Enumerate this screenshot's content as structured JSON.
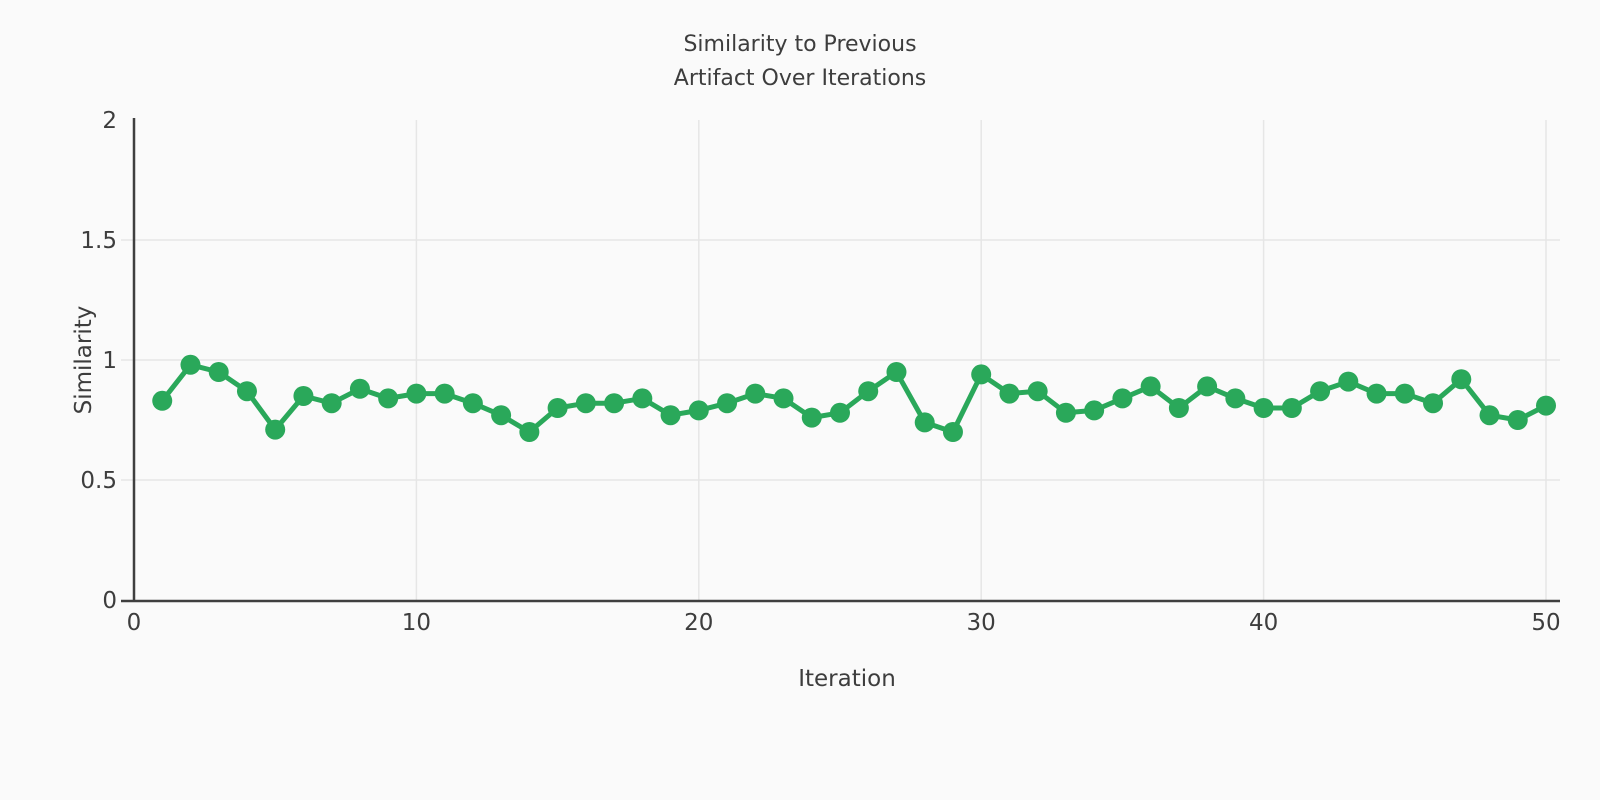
{
  "page": {
    "background_color": "#fafafa"
  },
  "chart_data": {
    "type": "line",
    "title_lines": [
      "Similarity to Previous",
      "Artifact Over Iterations"
    ],
    "xlabel": "Iteration",
    "ylabel": "Similarity",
    "x": [
      1,
      2,
      3,
      4,
      5,
      6,
      7,
      8,
      9,
      10,
      11,
      12,
      13,
      14,
      15,
      16,
      17,
      18,
      19,
      20,
      21,
      22,
      23,
      24,
      25,
      26,
      27,
      28,
      29,
      30,
      31,
      32,
      33,
      34,
      35,
      36,
      37,
      38,
      39,
      40,
      41,
      42,
      43,
      44,
      45,
      46,
      47,
      48,
      49,
      50
    ],
    "series": [
      {
        "name": "similarity",
        "values": [
          0.83,
          0.98,
          0.95,
          0.87,
          0.71,
          0.85,
          0.82,
          0.88,
          0.84,
          0.86,
          0.86,
          0.82,
          0.77,
          0.7,
          0.8,
          0.82,
          0.82,
          0.84,
          0.77,
          0.79,
          0.82,
          0.86,
          0.84,
          0.76,
          0.78,
          0.87,
          0.95,
          0.74,
          0.7,
          0.94,
          0.86,
          0.87,
          0.78,
          0.79,
          0.84,
          0.89,
          0.8,
          0.89,
          0.84,
          0.8,
          0.8,
          0.87,
          0.91,
          0.86,
          0.86,
          0.82,
          0.92,
          0.77,
          0.75,
          0.81
        ]
      }
    ],
    "xlim": [
      0,
      50.5
    ],
    "ylim": [
      0,
      2
    ],
    "xticks": [
      0,
      10,
      20,
      30,
      40,
      50
    ],
    "yticks": [
      0,
      0.5,
      1,
      1.5,
      2
    ],
    "grid": true,
    "legend": false,
    "line_color": "#2aa85a",
    "marker": "circle",
    "marker_radius": 10,
    "line_width": 5,
    "grid_color": "#e6e6e6",
    "axis_color": "#3f3f3f",
    "text_color": "#3d3d3d"
  }
}
